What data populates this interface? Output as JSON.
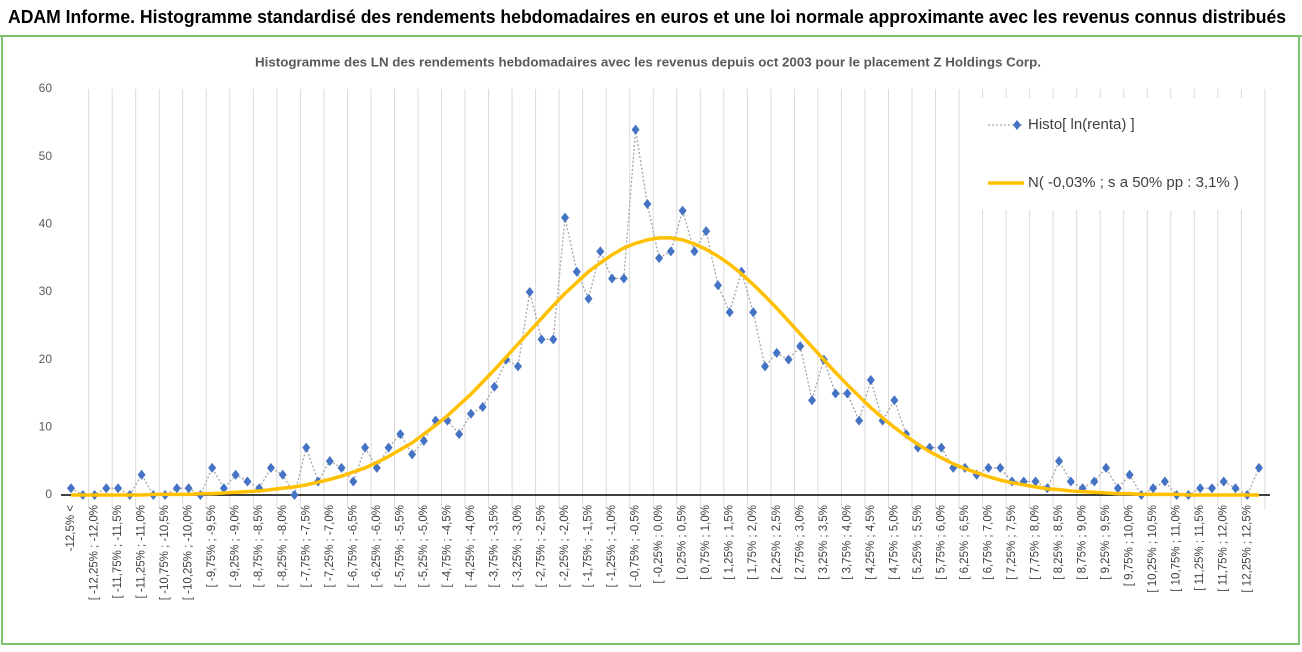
{
  "chart_data": {
    "type": "line",
    "title": "ADAM Informe. Histogramme standardisé des rendements hebdomadaires en euros et une loi normale approximante avec les revenus connus distribués",
    "subtitle": "Histogramme des LN des rendements hebdomadaires avec les revenus depuis oct 2003  pour le placement Z Holdings Corp.",
    "categories": [
      "-12,5% <",
      null,
      "[ -12,25% ; -12,0%",
      null,
      "[ -11,75% ; -11,5%",
      null,
      "[ -11,25% ; -11,0%",
      null,
      "[ -10,75% ; -10,5%",
      null,
      "[ -10,25% ; -10,0%",
      null,
      "[ -9,75% ; -9,5%",
      null,
      "[ -9,25% ; -9,0%",
      null,
      "[ -8,75% ; -8,5%",
      null,
      "[ -8,25% ; -8,0%",
      null,
      "[ -7,75% ; -7,5%",
      null,
      "[ -7,25% ; -7,0%",
      null,
      "[ -6,75% ; -6,5%",
      null,
      "[ -6,25% ; -6,0%",
      null,
      "[ -5,75% ; -5,5%",
      null,
      "[ -5,25% ; -5,0%",
      null,
      "[ -4,75% ; -4,5%",
      null,
      "[ -4,25% ; -4,0%",
      null,
      "[ -3,75% ; -3,5%",
      null,
      "[ -3,25% ; -3,0%",
      null,
      "[ -2,75% ; -2,5%",
      null,
      "[ -2,25% ; -2,0%",
      null,
      "[ -1,75% ; -1,5%",
      null,
      "[ -1,25% ; -1,0%",
      null,
      "[ -0,75% ; -0,5%",
      null,
      "[ -0,25% ; 0,0%",
      null,
      "[ 0,25% ; 0,5%",
      null,
      "[ 0,75% ; 1,0%",
      null,
      "[ 1,25% ; 1,5%",
      null,
      "[ 1,75% ; 2,0%",
      null,
      "[ 2,25% ; 2,5%",
      null,
      "[ 2,75% ; 3,0%",
      null,
      "[ 3,25% ; 3,5%",
      null,
      "[ 3,75% ; 4,0%",
      null,
      "[ 4,25% ; 4,5%",
      null,
      "[ 4,75% ; 5,0%",
      null,
      "[ 5,25% ; 5,5%",
      null,
      "[ 5,75% ; 6,0%",
      null,
      "[ 6,25% ; 6,5%",
      null,
      "[ 6,75% ; 7,0%",
      null,
      "[ 7,25% ; 7,5%",
      null,
      "[ 7,75% ; 8,0%",
      null,
      "[ 8,25% ; 8,5%",
      null,
      "[ 8,75% ; 9,0%",
      null,
      "[ 9,25% ; 9,5%",
      null,
      "[ 9,75% ; 10,0%",
      null,
      "[ 10,25% ; 10,5%",
      null,
      "[ 10,75% ; 11,0%",
      null,
      "[ 11,25% ; 11,5%",
      null,
      "[ 11,75% ; 12,0%",
      null,
      "[ 12,25% ; 12,5%",
      null
    ],
    "series": [
      {
        "name": "Histo[ ln(renta) ]",
        "color": "#4472c4",
        "style": "markers-dotted",
        "values": [
          1,
          0,
          0,
          1,
          1,
          0,
          3,
          0,
          0,
          1,
          1,
          0,
          4,
          1,
          3,
          2,
          1,
          4,
          3,
          0,
          7,
          2,
          5,
          4,
          2,
          7,
          4,
          7,
          9,
          6,
          8,
          11,
          11,
          9,
          12,
          13,
          16,
          20,
          19,
          30,
          23,
          23,
          41,
          33,
          29,
          36,
          32,
          32,
          54,
          43,
          35,
          36,
          42,
          36,
          39,
          31,
          27,
          33,
          27,
          19,
          21,
          20,
          22,
          14,
          20,
          15,
          15,
          11,
          17,
          11,
          14,
          9,
          7,
          7,
          7,
          4,
          4,
          3,
          4,
          4,
          2,
          2,
          2,
          1,
          5,
          2,
          1,
          2,
          4,
          1,
          3,
          0,
          1,
          2,
          0,
          0,
          1,
          1,
          2,
          1,
          0,
          4
        ]
      },
      {
        "name": "N( -0,03% ; s a 50% pp : 3,1% )",
        "color": "#ffc000",
        "style": "thick-line",
        "values": [
          0,
          0,
          0,
          0,
          0,
          0,
          0,
          0.1,
          0.1,
          0.1,
          0.1,
          0.2,
          0.2,
          0.3,
          0.4,
          0.5,
          0.6,
          0.8,
          1.0,
          1.2,
          1.5,
          1.9,
          2.3,
          2.8,
          3.4,
          4.0,
          4.8,
          5.7,
          6.7,
          7.7,
          9.0,
          10.3,
          11.7,
          13.3,
          14.9,
          16.7,
          18.5,
          20.4,
          22.3,
          24.2,
          26.1,
          28.0,
          29.8,
          31.4,
          33.0,
          34.3,
          35.5,
          36.5,
          37.2,
          37.7,
          38.0,
          38.0,
          37.7,
          37.1,
          36.3,
          35.3,
          34.1,
          32.7,
          31.1,
          29.4,
          27.6,
          25.7,
          23.8,
          21.9,
          20.0,
          18.1,
          16.3,
          14.6,
          12.9,
          11.4,
          10.0,
          8.7,
          7.5,
          6.4,
          5.5,
          4.6,
          3.9,
          3.3,
          2.7,
          2.2,
          1.8,
          1.5,
          1.2,
          0.9,
          0.8,
          0.6,
          0.5,
          0.4,
          0.3,
          0.2,
          0.2,
          0.1,
          0.1,
          0.1,
          0.1,
          0,
          0,
          0,
          0,
          0,
          0,
          0
        ]
      }
    ],
    "ylim": [
      0,
      60
    ],
    "yticks": [
      0,
      10,
      20,
      30,
      40,
      50,
      60
    ],
    "grid": "x",
    "legend": "top-right"
  }
}
